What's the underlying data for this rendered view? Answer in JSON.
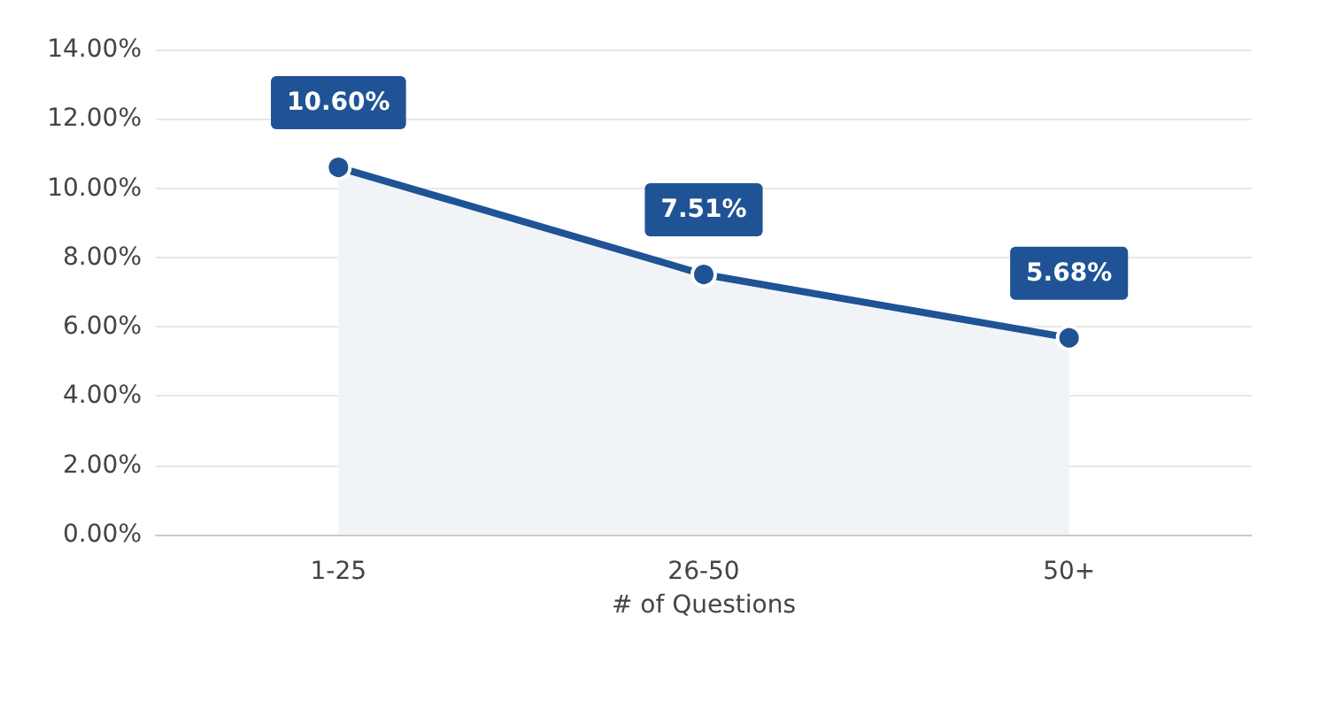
{
  "chart_data": {
    "type": "area",
    "xlabel": "# of Questions",
    "categories": [
      "1-25",
      "26-50",
      "50+"
    ],
    "series": [
      {
        "color": "#1f5396",
        "values": [
          10.6,
          7.51,
          5.68
        ],
        "value_labels": [
          "10.60%",
          "7.51%",
          "5.68%"
        ]
      }
    ],
    "ylim": [
      0,
      14
    ],
    "yticks": [
      {
        "value": 0,
        "label": "0.00%"
      },
      {
        "value": 2,
        "label": "2.00%"
      },
      {
        "value": 4,
        "label": "4.00%"
      },
      {
        "value": 6,
        "label": "6.00%"
      },
      {
        "value": 8,
        "label": "8.00%"
      },
      {
        "value": 10,
        "label": "10.00%"
      },
      {
        "value": 12,
        "label": "12.00%"
      },
      {
        "value": 14,
        "label": "14.00%"
      }
    ],
    "grid": "y",
    "marker": "circle"
  }
}
